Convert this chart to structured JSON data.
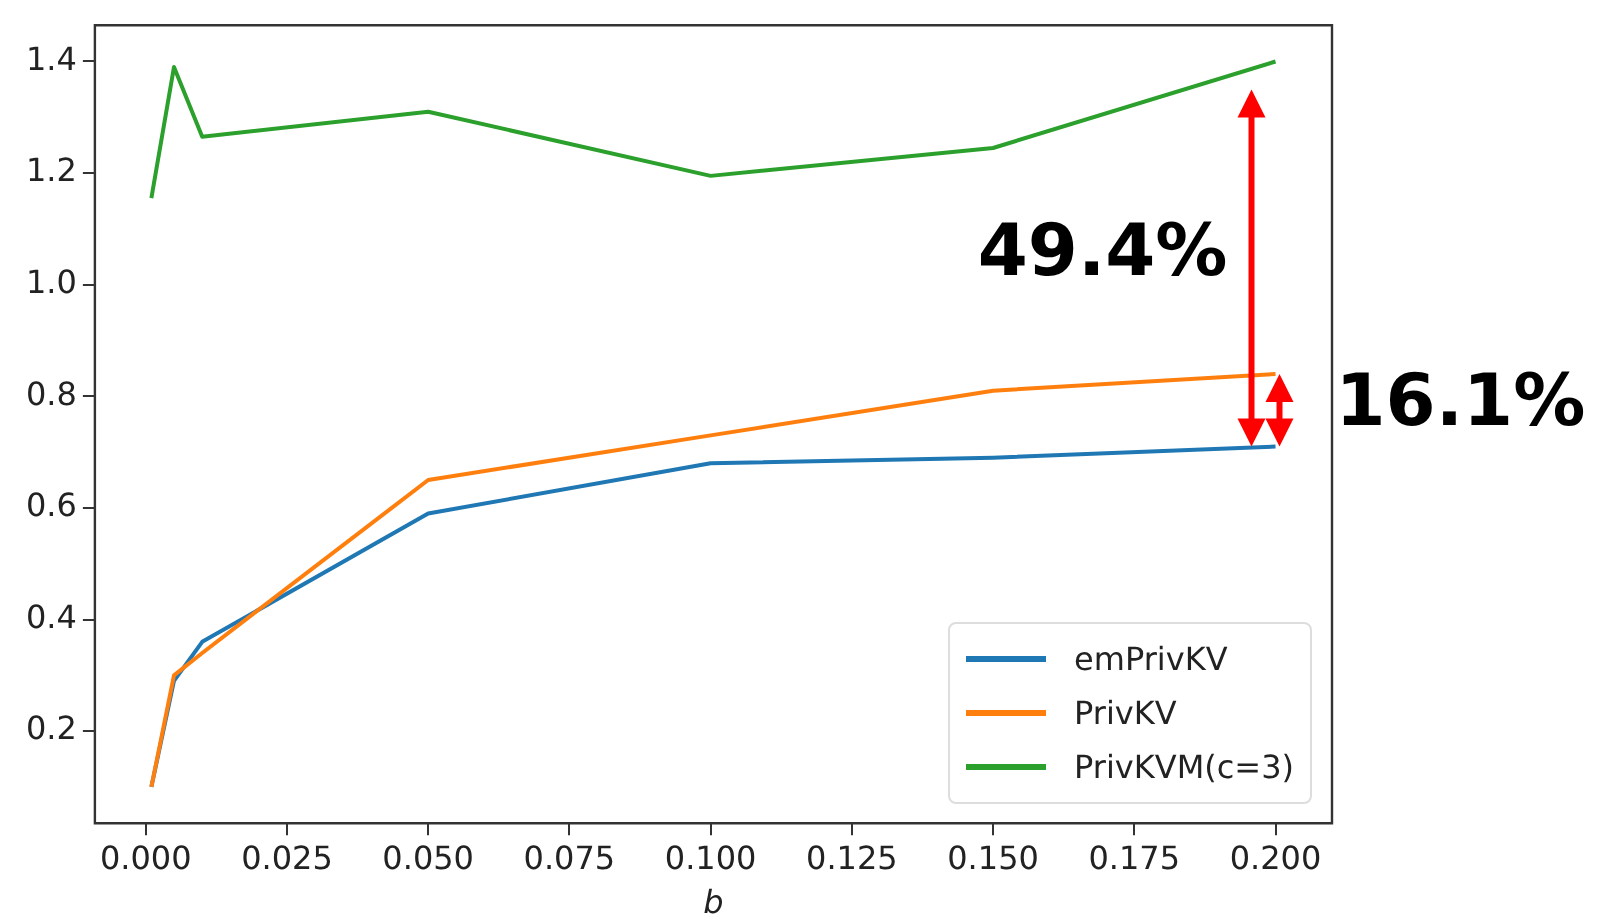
{
  "chart_data": {
    "type": "line",
    "xlabel": "b",
    "x": [
      0.001,
      0.005,
      0.01,
      0.05,
      0.1,
      0.15,
      0.2
    ],
    "series": [
      {
        "name": "emPrivKV",
        "color": "#1f77b4",
        "values": [
          0.1,
          0.29,
          0.36,
          0.59,
          0.68,
          0.69,
          0.71
        ]
      },
      {
        "name": "PrivKV",
        "color": "#ff7f0e",
        "values": [
          0.1,
          0.3,
          0.34,
          0.65,
          0.73,
          0.81,
          0.84
        ]
      },
      {
        "name": "PrivKVM(c=3)",
        "color": "#2ca02c",
        "values": [
          1.155,
          1.39,
          1.265,
          1.31,
          1.195,
          1.245,
          1.4
        ]
      }
    ],
    "xlim": [
      -0.009,
      0.21
    ],
    "xticks": [
      {
        "value": 0,
        "label": "0.000"
      },
      {
        "value": 0.025,
        "label": "0.025"
      },
      {
        "value": 0.05,
        "label": "0.050"
      },
      {
        "value": 0.075,
        "label": "0.075"
      },
      {
        "value": 0.1,
        "label": "0.100"
      },
      {
        "value": 0.125,
        "label": "0.125"
      },
      {
        "value": 0.15,
        "label": "0.150"
      },
      {
        "value": 0.175,
        "label": "0.175"
      },
      {
        "value": 0.2,
        "label": "0.200"
      }
    ],
    "ylim": [
      0.035,
      1.465
    ],
    "yticks": [
      0.2,
      0.4,
      0.6,
      {
        "value": 0.8,
        "label": "0.8"
      },
      {
        "value": 1.0,
        "label": "1.0"
      },
      1.2,
      1.4
    ],
    "grid": false,
    "legend": "bottom right",
    "marker": "none",
    "line_style": "solid",
    "annotations": [
      "49.4%",
      "16.1%"
    ]
  }
}
